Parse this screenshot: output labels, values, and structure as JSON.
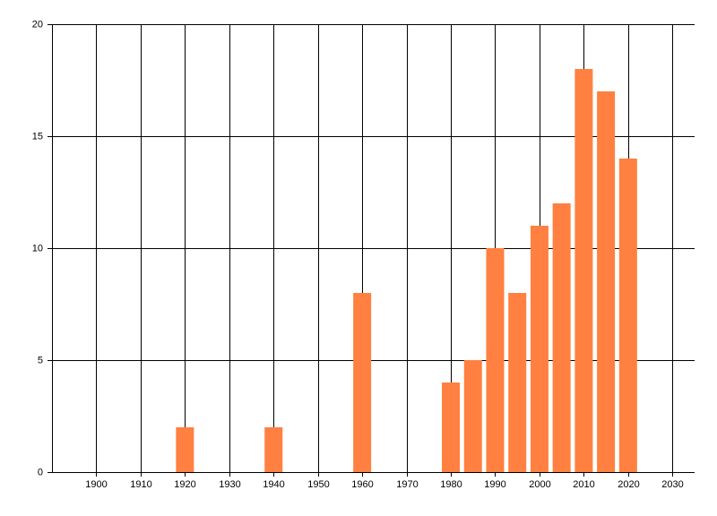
{
  "chart_data": {
    "type": "bar",
    "x": [
      1920,
      1940,
      1960,
      1980,
      1985,
      1990,
      1995,
      2000,
      2005,
      2010,
      2015,
      2020
    ],
    "values": [
      2,
      2,
      8,
      4,
      5,
      10,
      8,
      11,
      12,
      18,
      17,
      14
    ],
    "color": "#ff8040",
    "xlim": [
      1890,
      2035
    ],
    "xticks": [
      1900,
      1910,
      1920,
      1930,
      1940,
      1950,
      1960,
      1970,
      1980,
      1990,
      2000,
      2010,
      2020,
      2030
    ],
    "ylim": [
      0,
      20
    ],
    "yticks": [
      0,
      5,
      10,
      15,
      20
    ],
    "grid": true
  }
}
